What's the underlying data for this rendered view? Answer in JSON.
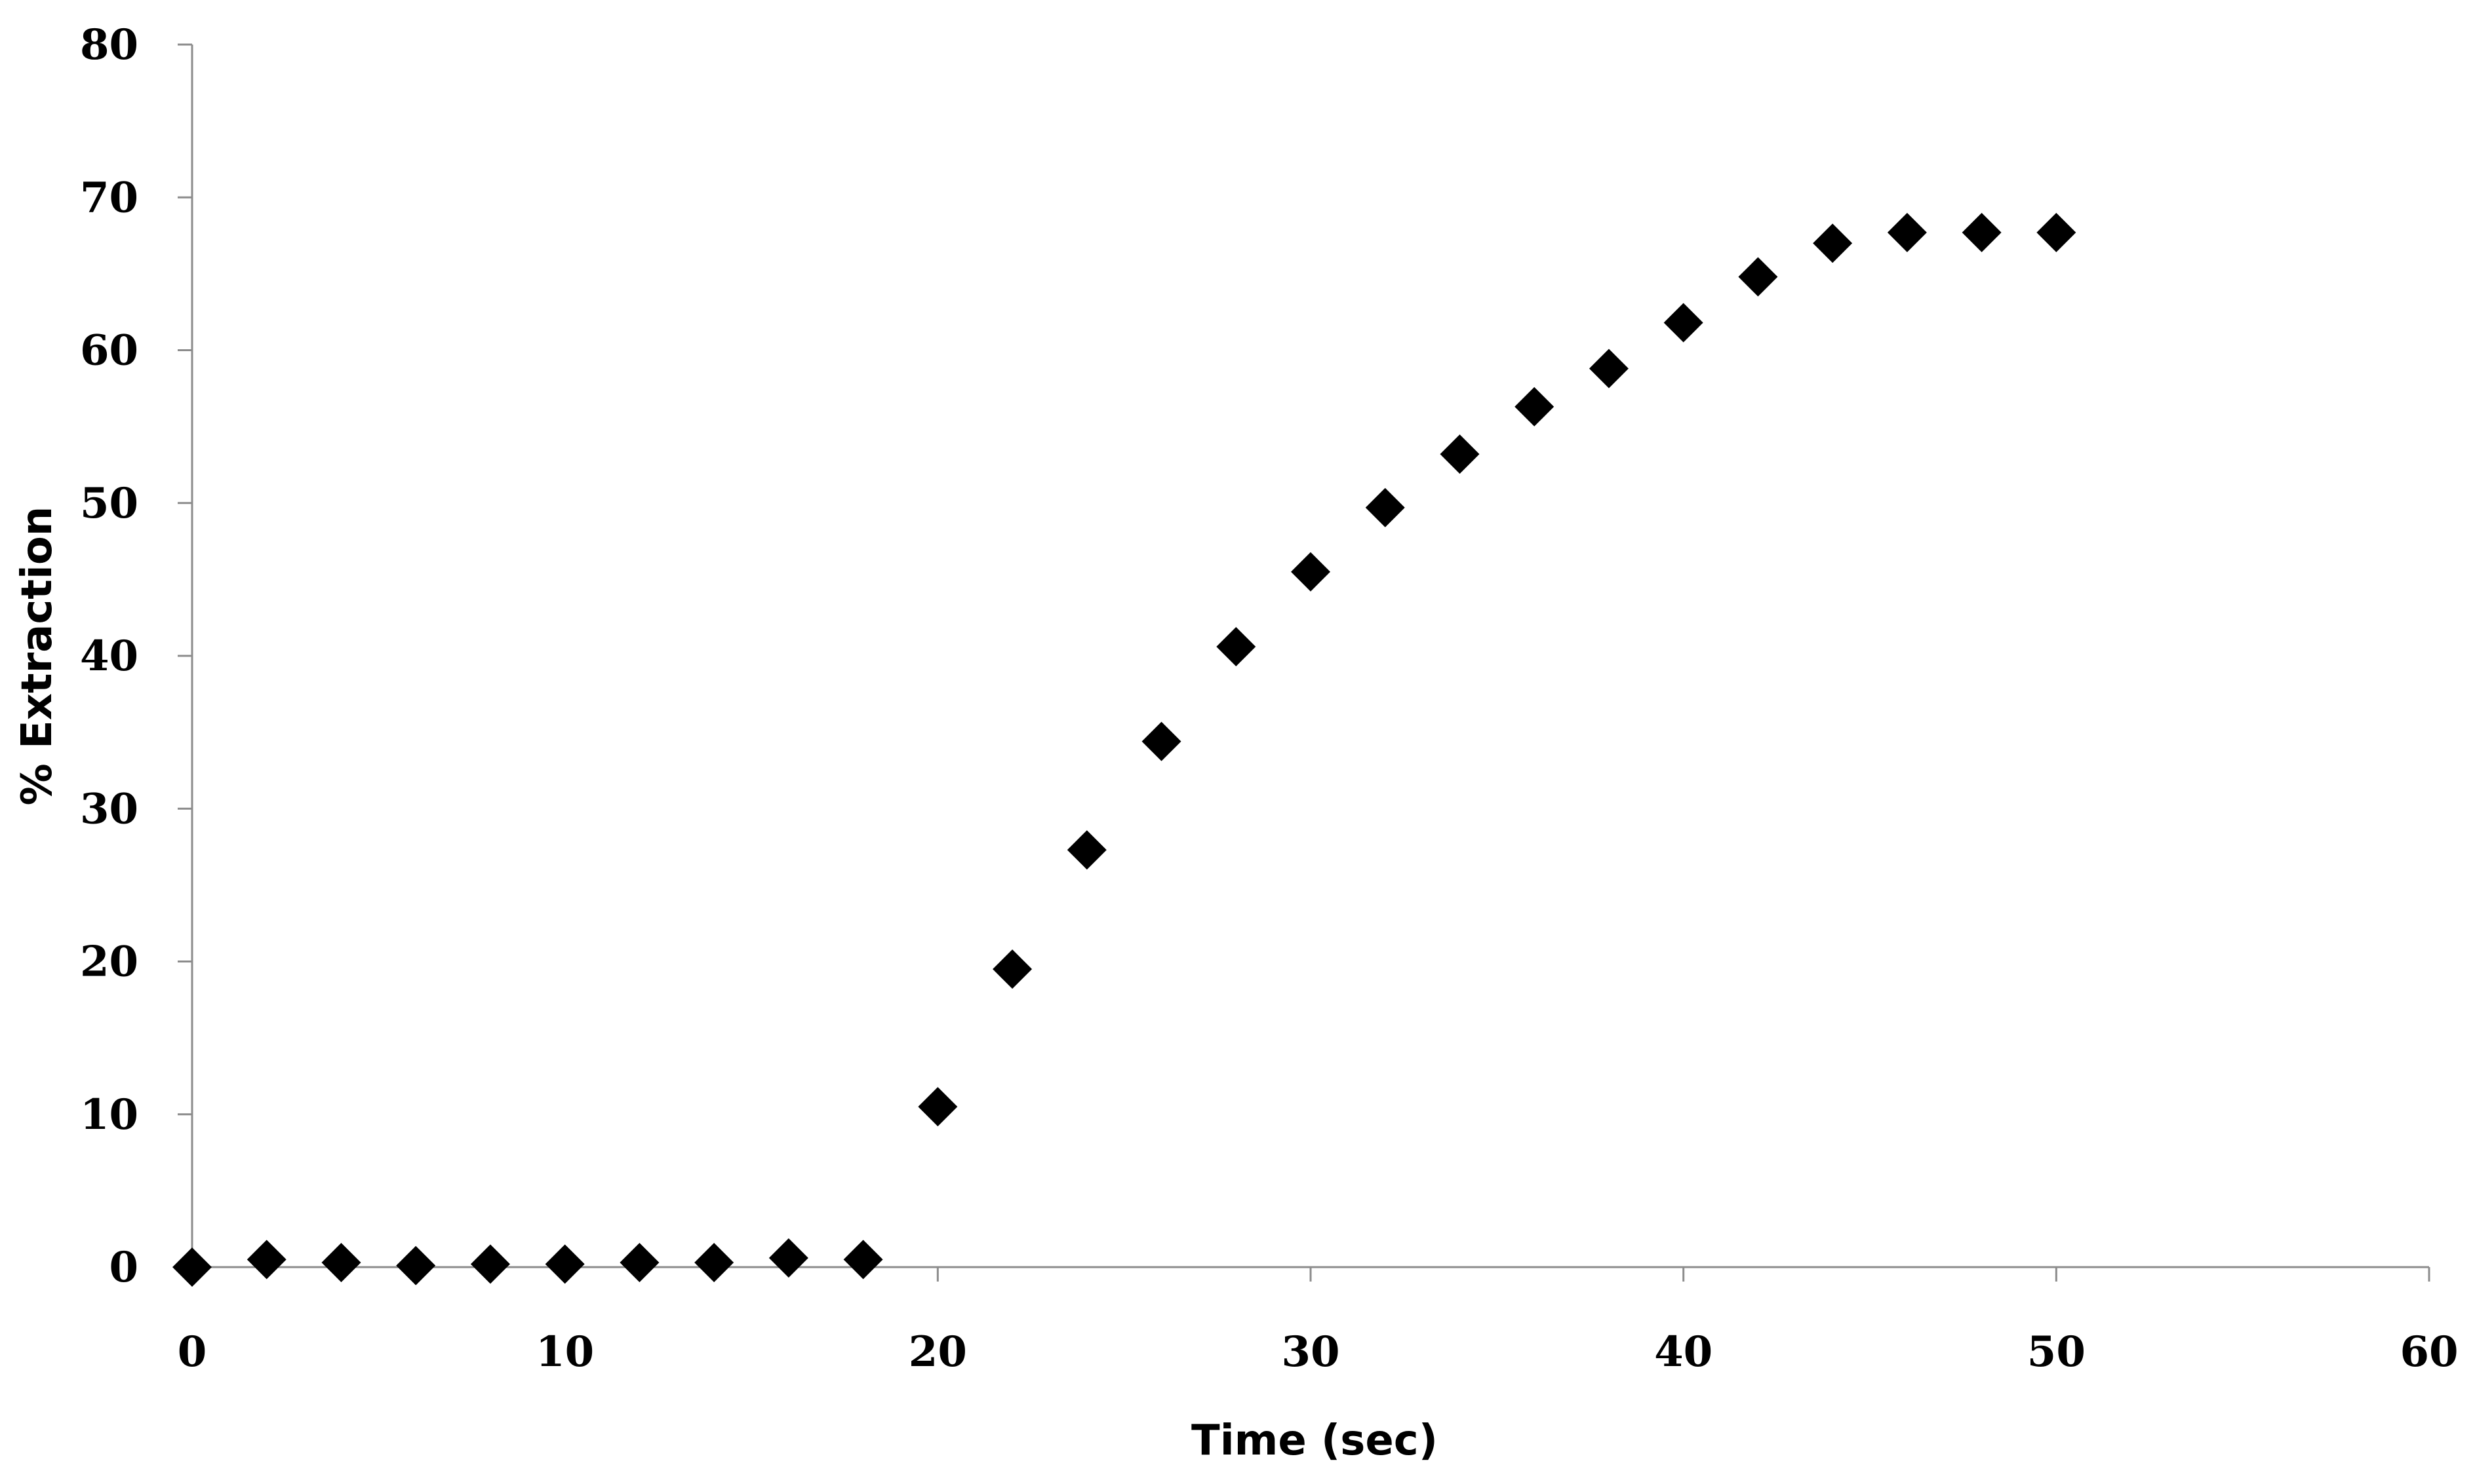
{
  "chart_data": {
    "type": "scatter",
    "title": "",
    "xlabel": "Time (sec)",
    "ylabel": "% Extraction",
    "xlim": [
      0,
      60
    ],
    "ylim": [
      0,
      80
    ],
    "x_ticks": [
      0,
      10,
      20,
      30,
      40,
      50,
      60
    ],
    "y_ticks": [
      0,
      10,
      20,
      30,
      40,
      50,
      60,
      70,
      80
    ],
    "grid": false,
    "legend": "none",
    "marker": "diamond",
    "marker_color": "#000000",
    "axis_color": "#8c8c8c",
    "series": [
      {
        "points": [
          {
            "x": 0,
            "y": 0
          },
          {
            "x": 2,
            "y": 0.5
          },
          {
            "x": 4,
            "y": 0.3
          },
          {
            "x": 6,
            "y": 0.1
          },
          {
            "x": 8,
            "y": 0.2
          },
          {
            "x": 10,
            "y": 0.2
          },
          {
            "x": 12,
            "y": 0.3
          },
          {
            "x": 14,
            "y": 0.3
          },
          {
            "x": 16,
            "y": 0.6
          },
          {
            "x": 18,
            "y": 0.5
          },
          {
            "x": 20,
            "y": 10.5
          },
          {
            "x": 22,
            "y": 19.5
          },
          {
            "x": 24,
            "y": 27.3
          },
          {
            "x": 26,
            "y": 34.4
          },
          {
            "x": 28,
            "y": 40.6
          },
          {
            "x": 30,
            "y": 45.5
          },
          {
            "x": 32,
            "y": 49.7
          },
          {
            "x": 34,
            "y": 53.2
          },
          {
            "x": 36,
            "y": 56.3
          },
          {
            "x": 38,
            "y": 58.8
          },
          {
            "x": 40,
            "y": 61.8
          },
          {
            "x": 42,
            "y": 64.8
          },
          {
            "x": 44,
            "y": 67.0
          },
          {
            "x": 46,
            "y": 67.7
          },
          {
            "x": 48,
            "y": 67.7
          },
          {
            "x": 50,
            "y": 67.7
          }
        ]
      }
    ]
  }
}
